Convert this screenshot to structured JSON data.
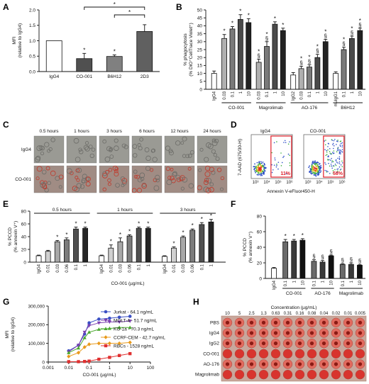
{
  "panel_letters": [
    "A",
    "B",
    "C",
    "D",
    "E",
    "F",
    "G",
    "H"
  ],
  "panelC": {
    "rows": [
      "IgG4",
      "CO-001"
    ],
    "times": [
      "0.5 hours",
      "1 hours",
      "3 hours",
      "6 hours",
      "12 hours",
      "24 hours"
    ]
  },
  "panelD": {
    "plots": [
      {
        "title": "IgG4",
        "gate_pct": "11%"
      },
      {
        "title": "CO-001",
        "gate_pct": "58%"
      }
    ],
    "xlabel": "Annexin V-eFluor450-H",
    "ylabel": "7-AAD (675/30-H)",
    "ticks": [
      "10³",
      "10⁴",
      "10⁵",
      "10⁶"
    ],
    "gate_color": "#e0202a"
  },
  "panelH": {
    "title": "Concentration (µg/mL)",
    "concentrations": [
      "10",
      "5",
      "2.5",
      "1.3",
      "0.63",
      "0.31",
      "0.16",
      "0.08",
      "0.04",
      "0.02",
      "0.01",
      "0.005"
    ],
    "rows": [
      "PBS",
      "IgG4",
      "IgG2",
      "CO-001",
      "AO-176",
      "Magrolimab"
    ]
  },
  "chart_data": [
    {
      "panel": "A",
      "type": "bar",
      "categories": [
        "IgG4",
        "CO-001",
        "B6H12",
        "2D3"
      ],
      "values": [
        1.0,
        0.42,
        0.49,
        1.3
      ],
      "errors": [
        0,
        0.17,
        0.05,
        0.22
      ],
      "fills": [
        "#ffffff",
        "#505050",
        "#808080",
        "#606060"
      ],
      "sig": [
        "",
        "*",
        "*",
        ""
      ],
      "brackets": [
        {
          "from": 1,
          "to": 3,
          "label": "*"
        },
        {
          "from": 2,
          "to": 3,
          "label": "*"
        }
      ],
      "ylabel": "MFI",
      "ylabel2": "(relative to IgG4)",
      "ylim": [
        0,
        2
      ],
      "yticks": [
        "0.0",
        "0.5",
        "1.0",
        "1.5",
        "2.0"
      ]
    },
    {
      "panel": "B",
      "type": "bar",
      "groups": [
        {
          "name": "",
          "labels": [
            "IgG4"
          ],
          "values": [
            10
          ],
          "errors": [
            1.5
          ],
          "sig": [
            ""
          ],
          "fills": [
            "#ffffff"
          ]
        },
        {
          "name": "CO-001",
          "labels": [
            "0.03",
            "0.1",
            "1",
            "10"
          ],
          "values": [
            32,
            38,
            44,
            42
          ],
          "errors": [
            2.5,
            1.5,
            3,
            2.5
          ],
          "sig": [
            "*",
            "*",
            "*",
            "*"
          ],
          "fills": [
            "#b0b0b0",
            "#7a7a7a",
            "#4a4a4a",
            "#222222"
          ]
        },
        {
          "name": "Magrolimab",
          "labels": [
            "0.03",
            "0.1",
            "1",
            "10"
          ],
          "values": [
            17,
            27,
            41,
            37
          ],
          "errors": [
            2,
            3,
            1.5,
            1.5
          ],
          "sig": [
            "*§",
            "*§",
            "*",
            "*"
          ],
          "fills": [
            "#b0b0b0",
            "#7a7a7a",
            "#4a4a4a",
            "#222222"
          ]
        },
        {
          "name": "AO-176",
          "labels": [
            "IgG2",
            "0.03",
            "0.1",
            "1",
            "10"
          ],
          "values": [
            9,
            13,
            14,
            20,
            30
          ],
          "errors": [
            1.5,
            1.5,
            1.5,
            2,
            1.5
          ],
          "sig": [
            "",
            "*§",
            "*§",
            "*§",
            "*§"
          ],
          "fills": [
            "#ffffff",
            "#b0b0b0",
            "#7a7a7a",
            "#4a4a4a",
            "#222222"
          ]
        },
        {
          "name": "B6H12",
          "labels": [
            "muIgG1",
            "0.1",
            "1",
            "10"
          ],
          "values": [
            10,
            25,
            32,
            37
          ],
          "errors": [
            1,
            1.5,
            1.5,
            1.5
          ],
          "sig": [
            "",
            "*§",
            "*§",
            "*§"
          ],
          "fills": [
            "#ffffff",
            "#7a7a7a",
            "#4a4a4a",
            "#222222"
          ]
        }
      ],
      "ylabel": "% phagocytosis",
      "ylabel2": "(% DiO⁺CellTrace Violet⁺)",
      "ylim": [
        0,
        50
      ],
      "yticks": [
        "0",
        "5",
        "10",
        "15",
        "20",
        "25",
        "30",
        "35",
        "40",
        "45",
        "50"
      ]
    },
    {
      "panel": "E",
      "type": "bar",
      "groups": [
        {
          "name": "0.5 hours",
          "values": [
            10,
            17,
            32,
            35,
            52,
            53
          ],
          "errors": [
            1,
            1.5,
            2,
            3,
            3,
            2
          ],
          "sig": [
            "",
            "",
            "*",
            "*",
            "*",
            "*"
          ]
        },
        {
          "name": "1 hours",
          "values": [
            10,
            22,
            32,
            41,
            53,
            53
          ],
          "errors": [
            1,
            5,
            6,
            2,
            2,
            2
          ],
          "sig": [
            "",
            "*",
            "*",
            "*",
            "*",
            "*"
          ]
        },
        {
          "name": "3 hours",
          "values": [
            9,
            22,
            39,
            50,
            59,
            63
          ],
          "errors": [
            1,
            2,
            2,
            2,
            3,
            4
          ],
          "sig": [
            "",
            "*",
            "*",
            "*",
            "*",
            "*"
          ]
        }
      ],
      "labels": [
        "IgG4",
        "0.01",
        "0.03",
        "0.06",
        "0.1",
        "1"
      ],
      "fills": [
        "#ffffff",
        "#d0d0d0",
        "#a8a8a8",
        "#7c7c7c",
        "#505050",
        "#262626"
      ],
      "xlabel": "CO-001 (µg/mL)",
      "ylabel": "% PCCD",
      "ylabel2": "(% annexin V⁺)",
      "ylim": [
        0,
        80
      ],
      "yticks": [
        "0",
        "20",
        "40",
        "60",
        "80"
      ]
    },
    {
      "panel": "F",
      "type": "bar",
      "groups": [
        {
          "name": "",
          "labels": [
            "IgG4"
          ],
          "values": [
            13
          ],
          "errors": [
            1
          ],
          "sig": [
            ""
          ],
          "fills": [
            "#ffffff"
          ]
        },
        {
          "name": "CO-001",
          "labels": [
            "0.1",
            "1",
            "10"
          ],
          "values": [
            47,
            48,
            49
          ],
          "errors": [
            3,
            2,
            2
          ],
          "sig": [
            "*",
            "*",
            "*"
          ],
          "fills": [
            "#6a6a6a",
            "#3a3a3a",
            "#111111"
          ]
        },
        {
          "name": "AO-176",
          "labels": [
            "0.1",
            "1",
            "10"
          ],
          "values": [
            22,
            21,
            29
          ],
          "errors": [
            2,
            2,
            1
          ],
          "sig": [
            "§",
            "§",
            "§"
          ],
          "fills": [
            "#6a6a6a",
            "#3a3a3a",
            "#111111"
          ]
        },
        {
          "name": "Magrolimab",
          "labels": [
            "0.1",
            "1",
            "10"
          ],
          "values": [
            18,
            18,
            17
          ],
          "errors": [
            1,
            2,
            1
          ],
          "sig": [
            "§",
            "§",
            "§"
          ],
          "fills": [
            "#6a6a6a",
            "#3a3a3a",
            "#111111"
          ]
        }
      ],
      "ylabel": "% PCCD",
      "ylabel2": "(% annexin V⁺)",
      "ylim": [
        0,
        80
      ],
      "yticks": [
        "0",
        "20",
        "40",
        "60",
        "80"
      ]
    },
    {
      "panel": "G",
      "type": "scatter",
      "x": [
        0.01,
        0.03,
        0.06,
        0.1,
        0.3,
        1,
        3,
        10
      ],
      "series": [
        {
          "name": "Jurkat - 64.1 ng/mL",
          "color": "#3a4fc4",
          "marker": "circle",
          "values": [
            60000,
            90000,
            150000,
            210000,
            230000,
            235000,
            240000,
            245000
          ]
        },
        {
          "name": "MOLT-4 - 51.7 ng/mL",
          "color": "#7b3fb0",
          "marker": "triangle-down",
          "values": [
            55000,
            90000,
            160000,
            195000,
            210000,
            215000,
            215000,
            220000
          ]
        },
        {
          "name": "KG-1a - 70.3 ng/mL",
          "color": "#4aa82e",
          "marker": "triangle-up",
          "values": [
            50000,
            75000,
            130000,
            160000,
            175000,
            180000,
            185000,
            185000
          ]
        },
        {
          "name": "CCRF-CEM - 42.7 ng/mL",
          "color": "#e89a1c",
          "marker": "diamond",
          "values": [
            30000,
            50000,
            80000,
            95000,
            100000,
            100000,
            100000,
            105000
          ]
        },
        {
          "name": "RBCs - 1528 ng/mL",
          "color": "#e03030",
          "marker": "square",
          "values": [
            2000,
            2000,
            3000,
            5000,
            15000,
            25000,
            35000,
            45000
          ]
        }
      ],
      "xlabel": "CO-001 (µg/mL)",
      "ylabel": "MFI",
      "ylabel2": "(relative to IgG4)",
      "xscale": "log",
      "xlim": [
        0.001,
        100
      ],
      "ylim": [
        0,
        300000
      ],
      "xticks": [
        "0.001",
        "0.01",
        "0.1",
        "1",
        "10",
        "100"
      ],
      "yticks": [
        "0",
        "100,000",
        "200,000",
        "300,000"
      ]
    }
  ]
}
